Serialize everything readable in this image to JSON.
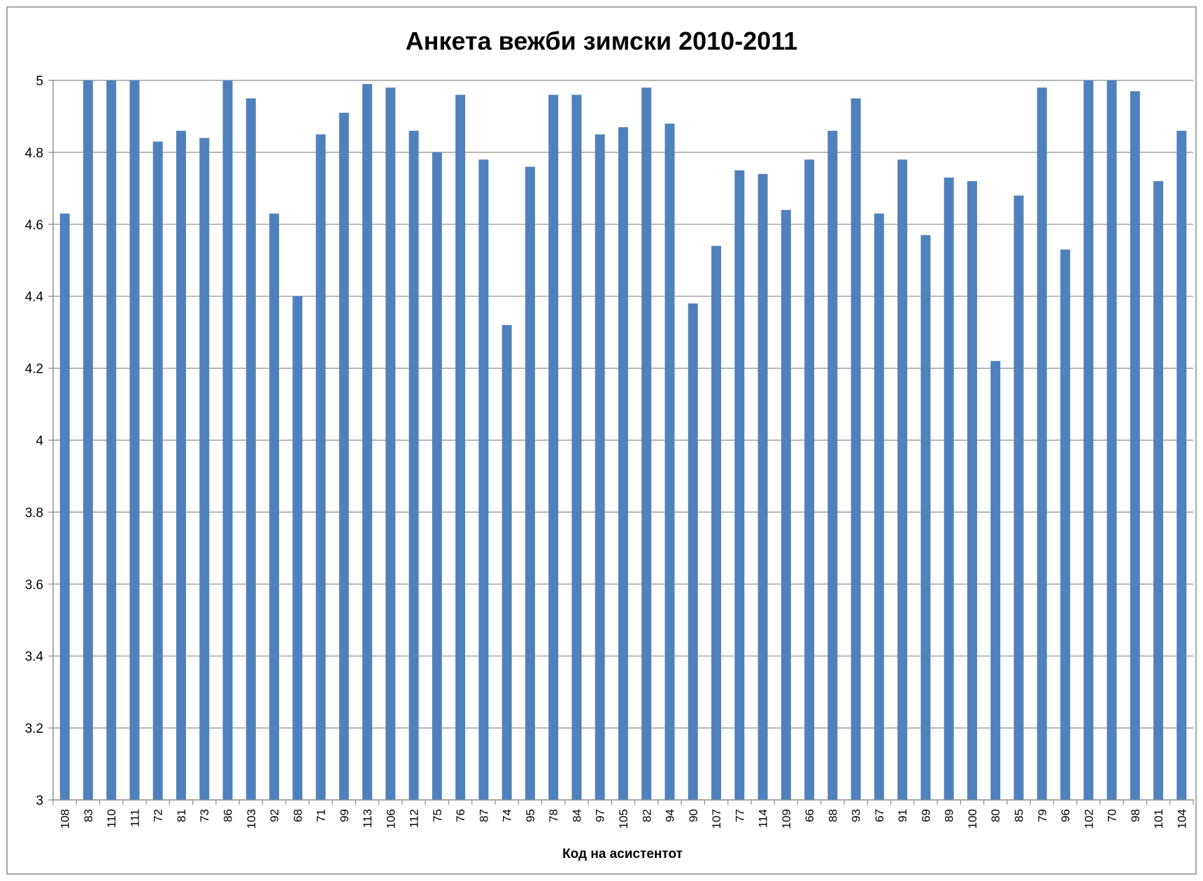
{
  "chart_data": {
    "type": "bar",
    "title": "Анкета вежби зимски 2010-2011",
    "xlabel": "Код на асистентот",
    "ylabel": "",
    "ylim": [
      3,
      5
    ],
    "y_ticks": [
      "3",
      "3.2",
      "3.4",
      "3.6",
      "3.8",
      "4",
      "4.2",
      "4.4",
      "4.6",
      "4.8",
      "5"
    ],
    "grid": true,
    "legend": "none",
    "bar_color": "#4F81BD",
    "categories": [
      "108",
      "83",
      "110",
      "111",
      "72",
      "81",
      "73",
      "86",
      "103",
      "92",
      "68",
      "71",
      "99",
      "113",
      "106",
      "112",
      "75",
      "76",
      "87",
      "74",
      "95",
      "78",
      "84",
      "97",
      "105",
      "82",
      "94",
      "90",
      "107",
      "77",
      "114",
      "109",
      "66",
      "88",
      "93",
      "67",
      "91",
      "69",
      "89",
      "100",
      "80",
      "85",
      "79",
      "96",
      "102",
      "70",
      "98",
      "101",
      "104"
    ],
    "values": [
      4.63,
      5.0,
      5.0,
      5.0,
      4.83,
      4.86,
      4.84,
      5.0,
      4.95,
      4.63,
      4.4,
      4.85,
      4.91,
      4.99,
      4.98,
      4.86,
      4.8,
      4.96,
      4.78,
      4.32,
      4.76,
      4.96,
      4.96,
      4.85,
      4.87,
      4.98,
      4.88,
      4.38,
      4.54,
      4.75,
      4.74,
      4.64,
      4.78,
      4.86,
      4.95,
      4.63,
      4.78,
      4.57,
      4.73,
      4.72,
      4.22,
      4.68,
      4.98,
      4.53,
      5.0,
      5.0,
      4.97,
      4.72,
      4.86
    ]
  }
}
